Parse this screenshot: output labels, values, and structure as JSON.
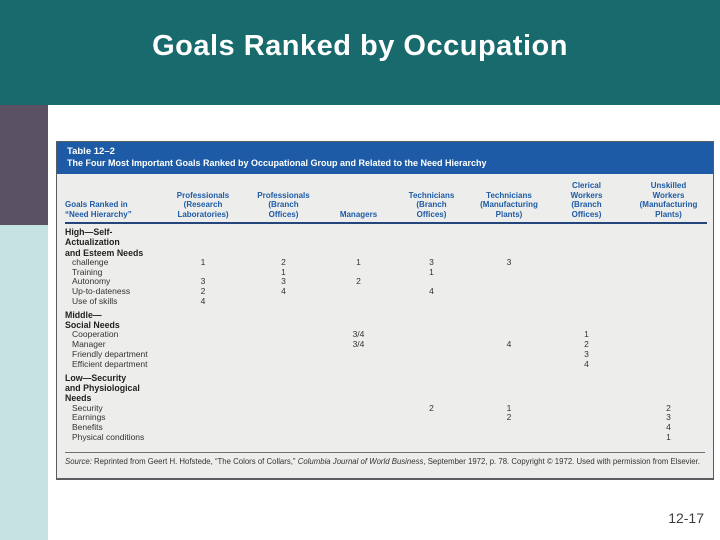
{
  "slide": {
    "title": "Goals Ranked by Occupation",
    "colors": {
      "header_teal": "#186a6d",
      "accent_purple": "#5a5165",
      "accent_cyan": "#c7e2e3",
      "table_header_blue": "#1d5ba6",
      "table_background": "#ededeb"
    }
  },
  "footer": {
    "page_number": "12-17"
  },
  "table": {
    "number_label": "Table 12–2",
    "title": "The Four Most Important Goals Ranked by Occupational Group and Related to the Need Hierarchy",
    "columns": [
      "Goals Ranked in\n“Need Hierarchy”",
      "Professionals\n(Research\nLaboratories)",
      "Professionals\n(Branch\nOffices)",
      "Managers",
      "Technicians\n(Branch\nOffices)",
      "Technicians\n(Manufacturing\nPlants)",
      "Clerical\nWorkers\n(Branch\nOffices)",
      "Unskilled\nWorkers\n(Manufacturing\nPlants)"
    ],
    "rows": [
      {
        "type": "section",
        "label": "High—Self-\nActualization\nand Esteem Needs",
        "values": [
          "",
          "",
          "",
          "",
          "",
          "",
          ""
        ]
      },
      {
        "type": "item",
        "label": "challenge",
        "values": [
          "1",
          "2",
          "1",
          "3",
          "3",
          "",
          ""
        ]
      },
      {
        "type": "item",
        "label": "Training",
        "values": [
          "",
          "1",
          "",
          "1",
          "",
          "",
          ""
        ]
      },
      {
        "type": "item",
        "label": "Autonomy",
        "values": [
          "3",
          "3",
          "2",
          "",
          "",
          "",
          ""
        ]
      },
      {
        "type": "item",
        "label": "Up-to-dateness",
        "values": [
          "2",
          "4",
          "",
          "4",
          "",
          "",
          ""
        ]
      },
      {
        "type": "item",
        "label": "Use of skills",
        "values": [
          "4",
          "",
          "",
          "",
          "",
          "",
          ""
        ]
      },
      {
        "type": "section",
        "label": "Middle—\nSocial Needs",
        "values": [
          "",
          "",
          "",
          "",
          "",
          "",
          ""
        ]
      },
      {
        "type": "item",
        "label": "Cooperation",
        "values": [
          "",
          "",
          "3/4",
          "",
          "",
          "1",
          ""
        ]
      },
      {
        "type": "item",
        "label": "Manager",
        "values": [
          "",
          "",
          "3/4",
          "",
          "4",
          "2",
          ""
        ]
      },
      {
        "type": "item",
        "label": "Friendly department",
        "values": [
          "",
          "",
          "",
          "",
          "",
          "3",
          ""
        ]
      },
      {
        "type": "item",
        "label": "Efficient department",
        "values": [
          "",
          "",
          "",
          "",
          "",
          "4",
          ""
        ]
      },
      {
        "type": "section",
        "label": "Low—Security\nand Physiological\nNeeds",
        "values": [
          "",
          "",
          "",
          "",
          "",
          "",
          ""
        ]
      },
      {
        "type": "item",
        "label": "Security",
        "values": [
          "",
          "",
          "",
          "2",
          "1",
          "",
          "2"
        ]
      },
      {
        "type": "item",
        "label": "Earnings",
        "values": [
          "",
          "",
          "",
          "",
          "2",
          "",
          "3"
        ]
      },
      {
        "type": "item",
        "label": "Benefits",
        "values": [
          "",
          "",
          "",
          "",
          "",
          "",
          "4"
        ]
      },
      {
        "type": "item",
        "label": "Physical conditions",
        "values": [
          "",
          "",
          "",
          "",
          "",
          "",
          "1"
        ]
      }
    ],
    "source": {
      "label_italic": "Source:",
      "text_1": " Reprinted from Geert H. Hofstede, “The Colors of Collars,” ",
      "journal_italic": "Columbia Journal of World Business",
      "text_2": ", September 1972, p. 78. Copyright © 1972. Used with permission from Elsevier."
    }
  }
}
